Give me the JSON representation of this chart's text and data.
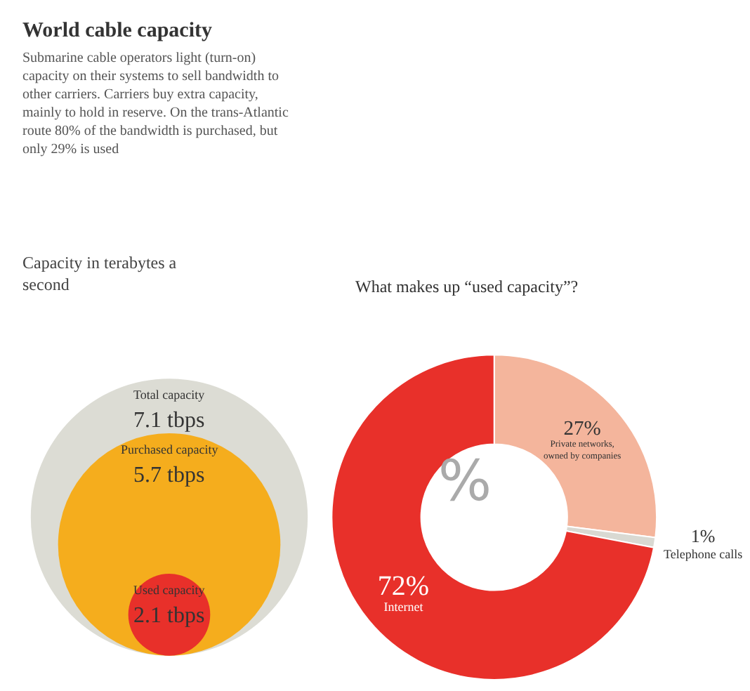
{
  "chart_data": [
    {
      "type": "other",
      "title": "World cable capacity",
      "subtitle": "Submarine cable operators light (turn-on) capacity on their systems to sell bandwidth to other carriers. Carriers buy extra capacity, mainly to hold in reserve. On the trans-Atlantic route 80% of the bandwidth is purchased, but only 29% is used",
      "annotations": [
        "Capacity in terabytes a second"
      ],
      "categories": [
        "Total capacity",
        "Purchased capacity",
        "Used capacity"
      ],
      "values": [
        7.1,
        5.7,
        2.1
      ],
      "value_labels": [
        "7.1 tbps",
        "5.7 tbps",
        "2.1 tbps"
      ],
      "colors": [
        "#dcdcd4",
        "#f5ad1d",
        "#e8302a"
      ]
    },
    {
      "type": "donut",
      "title": "What makes up “used capacity”?",
      "annotations": [
        "%"
      ],
      "categories": [
        "Private networks, owned by companies",
        "Telephone calls",
        "Internet"
      ],
      "values": [
        27,
        1,
        72
      ],
      "value_labels": [
        "27%",
        "1%",
        "72%"
      ],
      "colors": [
        "#f4b59c",
        "#d9d9d2",
        "#e8302a"
      ]
    }
  ]
}
